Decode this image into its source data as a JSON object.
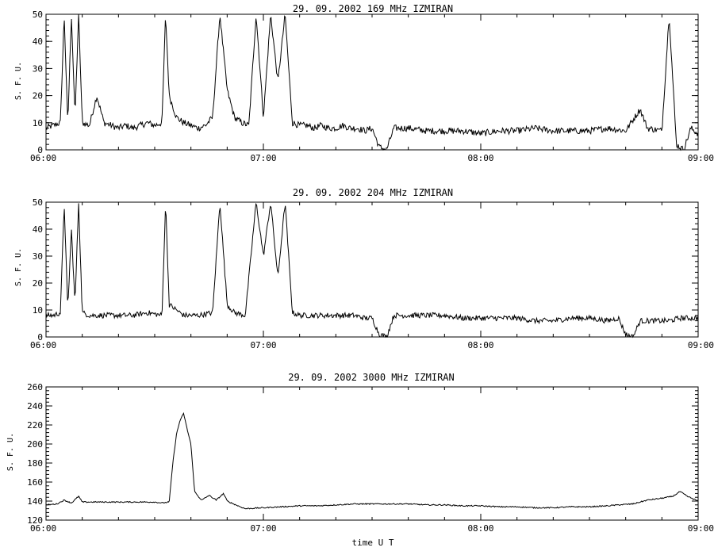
{
  "chart_data": [
    {
      "type": "line",
      "title": "29.  09.  2002    169 MHz    IZMIRAN",
      "ylabel": "S. F. U.",
      "xlabel": "",
      "xlim": [
        "06:00",
        "09:00"
      ],
      "ylim": [
        0,
        50
      ],
      "yticks": [
        0,
        10,
        20,
        30,
        40,
        50
      ],
      "xticks": [
        "06:00",
        "07:00",
        "08:00",
        "09:00"
      ],
      "baseline": 8,
      "noise": 1.2,
      "points": [
        [
          "06:00",
          8
        ],
        [
          "06:02",
          9
        ],
        [
          "06:04",
          10
        ],
        [
          "06:05",
          50
        ],
        [
          "06:06",
          9
        ],
        [
          "06:07",
          50
        ],
        [
          "06:08",
          12
        ],
        [
          "06:09",
          50
        ],
        [
          "06:10",
          10
        ],
        [
          "06:12",
          9
        ],
        [
          "06:14",
          20
        ],
        [
          "06:16",
          10
        ],
        [
          "06:18",
          9
        ],
        [
          "06:20",
          8
        ],
        [
          "06:22",
          9
        ],
        [
          "06:24",
          8
        ],
        [
          "06:26",
          9
        ],
        [
          "06:28",
          10
        ],
        [
          "06:30",
          9
        ],
        [
          "06:32",
          10
        ],
        [
          "06:33",
          50
        ],
        [
          "06:34",
          20
        ],
        [
          "06:36",
          12
        ],
        [
          "06:38",
          10
        ],
        [
          "06:40",
          9
        ],
        [
          "06:42",
          8
        ],
        [
          "06:44",
          9
        ],
        [
          "06:46",
          12
        ],
        [
          "06:48",
          50
        ],
        [
          "06:50",
          22
        ],
        [
          "06:52",
          12
        ],
        [
          "06:54",
          10
        ],
        [
          "06:56",
          9
        ],
        [
          "06:58",
          50
        ],
        [
          "07:00",
          12
        ],
        [
          "07:02",
          50
        ],
        [
          "07:04",
          25
        ],
        [
          "07:06",
          50
        ],
        [
          "07:08",
          10
        ],
        [
          "07:10",
          9
        ],
        [
          "07:12",
          9
        ],
        [
          "07:14",
          8
        ],
        [
          "07:16",
          9
        ],
        [
          "07:18",
          8
        ],
        [
          "07:20",
          8
        ],
        [
          "07:22",
          9
        ],
        [
          "07:24",
          8
        ],
        [
          "07:26",
          8
        ],
        [
          "07:28",
          7
        ],
        [
          "07:30",
          8
        ],
        [
          "07:32",
          1
        ],
        [
          "07:34",
          0
        ],
        [
          "07:36",
          8
        ],
        [
          "07:38",
          8
        ],
        [
          "07:40",
          8
        ],
        [
          "07:45",
          7
        ],
        [
          "07:50",
          7
        ],
        [
          "07:55",
          7
        ],
        [
          "08:00",
          6
        ],
        [
          "08:05",
          7
        ],
        [
          "08:10",
          7
        ],
        [
          "08:15",
          8
        ],
        [
          "08:20",
          7
        ],
        [
          "08:25",
          7
        ],
        [
          "08:30",
          7
        ],
        [
          "08:35",
          8
        ],
        [
          "08:40",
          7
        ],
        [
          "08:44",
          15
        ],
        [
          "08:46",
          8
        ],
        [
          "08:50",
          7
        ],
        [
          "08:52",
          50
        ],
        [
          "08:54",
          2
        ],
        [
          "08:56",
          0
        ],
        [
          "08:58",
          8
        ],
        [
          "09:00",
          6
        ]
      ]
    },
    {
      "type": "line",
      "title": "29.  09.  2002    204 MHz    IZMIRAN",
      "ylabel": "S. F. U.",
      "xlabel": "",
      "xlim": [
        "06:00",
        "09:00"
      ],
      "ylim": [
        0,
        50
      ],
      "yticks": [
        0,
        10,
        20,
        30,
        40,
        50
      ],
      "xticks": [
        "06:00",
        "07:00",
        "08:00",
        "09:00"
      ],
      "baseline": 8,
      "noise": 1.0,
      "points": [
        [
          "06:00",
          8
        ],
        [
          "06:02",
          8
        ],
        [
          "06:04",
          9
        ],
        [
          "06:05",
          50
        ],
        [
          "06:06",
          10
        ],
        [
          "06:07",
          40
        ],
        [
          "06:08",
          12
        ],
        [
          "06:09",
          50
        ],
        [
          "06:10",
          9
        ],
        [
          "06:12",
          8
        ],
        [
          "06:16",
          8
        ],
        [
          "06:20",
          8
        ],
        [
          "06:24",
          8
        ],
        [
          "06:28",
          9
        ],
        [
          "06:32",
          8
        ],
        [
          "06:33",
          50
        ],
        [
          "06:34",
          12
        ],
        [
          "06:38",
          8
        ],
        [
          "06:42",
          8
        ],
        [
          "06:46",
          9
        ],
        [
          "06:48",
          50
        ],
        [
          "06:50",
          12
        ],
        [
          "06:52",
          9
        ],
        [
          "06:55",
          8
        ],
        [
          "06:58",
          50
        ],
        [
          "07:00",
          30
        ],
        [
          "07:02",
          50
        ],
        [
          "07:04",
          22
        ],
        [
          "07:06",
          50
        ],
        [
          "07:08",
          9
        ],
        [
          "07:10",
          8
        ],
        [
          "07:15",
          8
        ],
        [
          "07:20",
          8
        ],
        [
          "07:25",
          8
        ],
        [
          "07:28",
          7
        ],
        [
          "07:30",
          7
        ],
        [
          "07:32",
          1
        ],
        [
          "07:34",
          0
        ],
        [
          "07:36",
          8
        ],
        [
          "07:40",
          8
        ],
        [
          "07:45",
          8
        ],
        [
          "07:50",
          8
        ],
        [
          "07:55",
          7
        ],
        [
          "08:00",
          7
        ],
        [
          "08:05",
          7
        ],
        [
          "08:10",
          7
        ],
        [
          "08:15",
          6
        ],
        [
          "08:20",
          6
        ],
        [
          "08:25",
          7
        ],
        [
          "08:30",
          7
        ],
        [
          "08:35",
          6
        ],
        [
          "08:38",
          7
        ],
        [
          "08:40",
          1
        ],
        [
          "08:42",
          0
        ],
        [
          "08:44",
          6
        ],
        [
          "08:46",
          6
        ],
        [
          "08:50",
          6
        ],
        [
          "08:52",
          6
        ],
        [
          "08:55",
          7
        ],
        [
          "09:00",
          7
        ]
      ]
    },
    {
      "type": "line",
      "title": "29.  09.  2002    3000 MHz    IZMIRAN",
      "ylabel": "S. F. U.",
      "xlabel": "time  U T",
      "xlim": [
        "06:00",
        "09:00"
      ],
      "ylim": [
        120,
        260
      ],
      "yticks": [
        120,
        140,
        160,
        180,
        200,
        220,
        240,
        260
      ],
      "xticks": [
        "06:00",
        "07:00",
        "08:00",
        "09:00"
      ],
      "baseline": 138,
      "noise": 0.6,
      "points": [
        [
          "06:00",
          136
        ],
        [
          "06:03",
          137
        ],
        [
          "06:05",
          141
        ],
        [
          "06:07",
          138
        ],
        [
          "06:09",
          145
        ],
        [
          "06:10",
          139
        ],
        [
          "06:15",
          139
        ],
        [
          "06:20",
          139
        ],
        [
          "06:25",
          139
        ],
        [
          "06:30",
          139
        ],
        [
          "06:32",
          138
        ],
        [
          "06:34",
          139
        ],
        [
          "06:35",
          180
        ],
        [
          "06:36",
          210
        ],
        [
          "06:37",
          225
        ],
        [
          "06:38",
          232
        ],
        [
          "06:39",
          215
        ],
        [
          "06:40",
          200
        ],
        [
          "06:41",
          150
        ],
        [
          "06:42",
          145
        ],
        [
          "06:43",
          141
        ],
        [
          "06:45",
          146
        ],
        [
          "06:47",
          141
        ],
        [
          "06:49",
          148
        ],
        [
          "06:50",
          140
        ],
        [
          "06:53",
          135
        ],
        [
          "06:55",
          132
        ],
        [
          "07:00",
          133
        ],
        [
          "07:05",
          134
        ],
        [
          "07:10",
          135
        ],
        [
          "07:15",
          135
        ],
        [
          "07:20",
          136
        ],
        [
          "07:25",
          137
        ],
        [
          "07:30",
          137
        ],
        [
          "07:35",
          137
        ],
        [
          "07:40",
          137
        ],
        [
          "07:45",
          136
        ],
        [
          "07:50",
          136
        ],
        [
          "07:55",
          135
        ],
        [
          "08:00",
          135
        ],
        [
          "08:05",
          134
        ],
        [
          "08:10",
          134
        ],
        [
          "08:15",
          133
        ],
        [
          "08:20",
          133
        ],
        [
          "08:25",
          134
        ],
        [
          "08:30",
          134
        ],
        [
          "08:35",
          135
        ],
        [
          "08:38",
          136
        ],
        [
          "08:42",
          137
        ],
        [
          "08:46",
          141
        ],
        [
          "08:50",
          143
        ],
        [
          "08:53",
          145
        ],
        [
          "08:55",
          150
        ],
        [
          "08:57",
          145
        ],
        [
          "09:00",
          140
        ]
      ]
    }
  ]
}
